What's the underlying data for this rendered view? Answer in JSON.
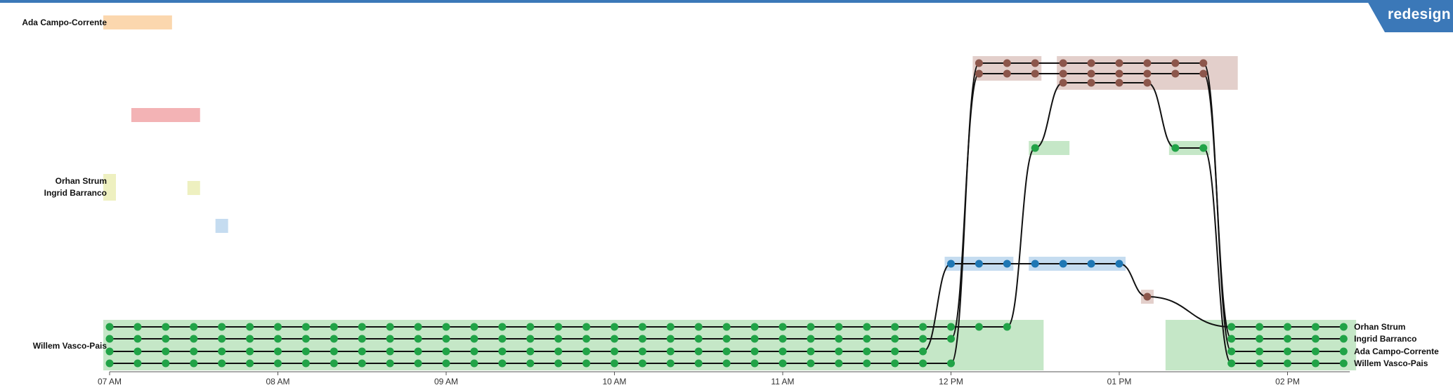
{
  "badge": {
    "label": "redesign"
  },
  "chart_data": {
    "type": "timeline",
    "xlabel": "",
    "ylabel": "",
    "x_ticks": [
      "07 AM",
      "08 AM",
      "09 AM",
      "10 AM",
      "11 AM",
      "12 PM",
      "01 PM",
      "02 PM"
    ],
    "x_range_hours": [
      7,
      14.4
    ],
    "time_step_minutes": 10,
    "people": [
      "Ada Campo-Corrente",
      "Orhan Strum",
      "Ingrid Barranco",
      "Willem Vasco-Pais"
    ],
    "locations": {
      "orange": {
        "color": "#f28a1e",
        "band": "#fbd7ae"
      },
      "red": {
        "color": "#d62728",
        "band": "#f3b3b5"
      },
      "yellow": {
        "color": "#b9c438",
        "band": "#eef0c0"
      },
      "blue": {
        "color": "#1f77b4",
        "band": "#c5dcf0"
      },
      "brown": {
        "color": "#8c564b",
        "band": "#e3cfcb"
      },
      "green": {
        "color": "#21a347",
        "band": "#c5e7c7"
      }
    },
    "segments": [
      {
        "location": "orange",
        "start": "07:00",
        "end": "07:20",
        "people": [
          "Ada Campo-Corrente"
        ]
      },
      {
        "location": "red",
        "start": "07:10",
        "end": "07:30",
        "people": [
          "Orhan Strum"
        ]
      },
      {
        "location": "yellow",
        "start": "07:00",
        "end": "07:00",
        "people": [
          "Orhan Strum",
          "Ingrid Barranco"
        ]
      },
      {
        "location": "yellow",
        "start": "07:30",
        "end": "07:30",
        "people": [
          "Ada Campo-Corrente"
        ]
      },
      {
        "location": "blue",
        "start": "07:40",
        "end": "07:40",
        "people": [
          "Ada Campo-Corrente"
        ]
      },
      {
        "location": "green",
        "start": "07:00",
        "end": "12:20",
        "people": [
          "Willem Vasco-Pais",
          "Ingrid Barranco",
          "Orhan Strum",
          "Ada Campo-Corrente"
        ]
      },
      {
        "location": "blue",
        "start": "12:00",
        "end": "12:20",
        "people": [
          "Orhan Strum"
        ]
      },
      {
        "location": "brown",
        "start": "12:10",
        "end": "12:30",
        "people": [
          "Ada Campo-Corrente",
          "Ingrid Barranco"
        ]
      },
      {
        "location": "green",
        "start": "12:30",
        "end": "12:40",
        "people": [
          "Willem Vasco-Pais"
        ]
      },
      {
        "location": "brown",
        "start": "12:40",
        "end": "13:40",
        "people": [
          "Ada Campo-Corrente",
          "Ingrid Barranco",
          "Willem Vasco-Pais"
        ]
      },
      {
        "location": "blue",
        "start": "12:30",
        "end": "13:00",
        "people": [
          "Orhan Strum"
        ]
      },
      {
        "location": "brown",
        "start": "13:10",
        "end": "13:10",
        "people": [
          "Orhan Strum"
        ]
      },
      {
        "location": "green",
        "start": "13:20",
        "end": "13:30",
        "people": [
          "Willem Vasco-Pais"
        ]
      },
      {
        "location": "green",
        "start": "13:40",
        "end": "14:20",
        "people": [
          "Orhan Strum",
          "Ingrid Barranco",
          "Ada Campo-Corrente",
          "Willem Vasco-Pais"
        ]
      }
    ],
    "left_labels": [
      {
        "text": "Ada Campo-Corrente",
        "person": "Ada Campo-Corrente"
      },
      {
        "text": "Orhan Strum",
        "person": "Orhan Strum"
      },
      {
        "text": "Ingrid Barranco",
        "person": "Ingrid Barranco"
      },
      {
        "text": "Willem Vasco-Pais",
        "person": "Willem Vasco-Pais"
      }
    ],
    "right_labels": [
      "Orhan Strum",
      "Ingrid Barranco",
      "Ada Campo-Corrente",
      "Willem Vasco-Pais"
    ]
  }
}
